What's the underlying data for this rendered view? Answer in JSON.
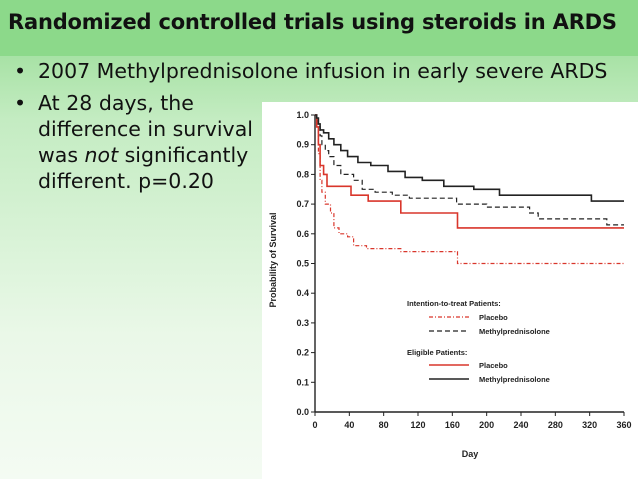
{
  "slide": {
    "title": "Randomized controlled trials using steroids in ARDS",
    "bullet1": "2007 Methylprednisolone infusion in early severe ARDS",
    "bullet2_pre": "At 28 days, the difference in survival was ",
    "bullet2_em": "not",
    "bullet2_post": " significantly different. p=0.20"
  },
  "chart_data": {
    "type": "line",
    "title": "",
    "xlabel": "Day",
    "ylabel": "Probability of Survival",
    "xlim": [
      0,
      360
    ],
    "ylim": [
      0,
      1.0
    ],
    "xticks": [
      0,
      40,
      80,
      120,
      160,
      200,
      240,
      280,
      320,
      360
    ],
    "yticks": [
      "0.0",
      "0.1",
      "0.2",
      "0.3",
      "0.4",
      "0.5",
      "0.6",
      "0.7",
      "0.8",
      "0.9",
      "1.0"
    ],
    "legend": {
      "group1": "Intention-to-treat Patients:",
      "group2": "Eligible Patients:"
    },
    "series": [
      {
        "name": "Placebo",
        "group": "Intention-to-treat Patients:",
        "color": "#d9362b",
        "style": "dashdot",
        "points": [
          [
            0,
            1.0
          ],
          [
            2,
            0.97
          ],
          [
            4,
            0.87
          ],
          [
            6,
            0.78
          ],
          [
            8,
            0.74
          ],
          [
            12,
            0.7
          ],
          [
            18,
            0.67
          ],
          [
            22,
            0.62
          ],
          [
            28,
            0.6
          ],
          [
            38,
            0.59
          ],
          [
            45,
            0.56
          ],
          [
            55,
            0.56
          ],
          [
            60,
            0.55
          ],
          [
            95,
            0.55
          ],
          [
            100,
            0.54
          ],
          [
            165,
            0.54
          ],
          [
            166,
            0.5
          ],
          [
            360,
            0.5
          ]
        ]
      },
      {
        "name": "Methylprednisolone",
        "group": "Intention-to-treat Patients:",
        "color": "#222222",
        "style": "dashed",
        "points": [
          [
            0,
            1.0
          ],
          [
            2,
            0.98
          ],
          [
            4,
            0.96
          ],
          [
            6,
            0.93
          ],
          [
            8,
            0.9
          ],
          [
            12,
            0.88
          ],
          [
            16,
            0.86
          ],
          [
            22,
            0.83
          ],
          [
            30,
            0.8
          ],
          [
            45,
            0.78
          ],
          [
            55,
            0.75
          ],
          [
            70,
            0.74
          ],
          [
            90,
            0.73
          ],
          [
            110,
            0.72
          ],
          [
            160,
            0.72
          ],
          [
            165,
            0.7
          ],
          [
            200,
            0.69
          ],
          [
            250,
            0.67
          ],
          [
            260,
            0.65
          ],
          [
            330,
            0.65
          ],
          [
            340,
            0.63
          ],
          [
            360,
            0.63
          ]
        ]
      },
      {
        "name": "Placebo",
        "group": "Eligible Patients:",
        "color": "#d9362b",
        "style": "solid",
        "points": [
          [
            0,
            1.0
          ],
          [
            2,
            0.96
          ],
          [
            4,
            0.9
          ],
          [
            6,
            0.83
          ],
          [
            10,
            0.8
          ],
          [
            14,
            0.76
          ],
          [
            40,
            0.76
          ],
          [
            42,
            0.73
          ],
          [
            60,
            0.73
          ],
          [
            62,
            0.71
          ],
          [
            95,
            0.71
          ],
          [
            100,
            0.67
          ],
          [
            165,
            0.67
          ],
          [
            166,
            0.62
          ],
          [
            360,
            0.62
          ]
        ]
      },
      {
        "name": "Methylprednisolone",
        "group": "Eligible Patients:",
        "color": "#222222",
        "style": "solid",
        "points": [
          [
            0,
            1.0
          ],
          [
            2,
            0.99
          ],
          [
            4,
            0.97
          ],
          [
            6,
            0.95
          ],
          [
            10,
            0.94
          ],
          [
            16,
            0.92
          ],
          [
            22,
            0.9
          ],
          [
            30,
            0.88
          ],
          [
            38,
            0.86
          ],
          [
            50,
            0.84
          ],
          [
            65,
            0.83
          ],
          [
            85,
            0.81
          ],
          [
            105,
            0.79
          ],
          [
            125,
            0.78
          ],
          [
            150,
            0.76
          ],
          [
            185,
            0.75
          ],
          [
            215,
            0.73
          ],
          [
            320,
            0.73
          ],
          [
            322,
            0.71
          ],
          [
            360,
            0.71
          ]
        ]
      }
    ]
  }
}
